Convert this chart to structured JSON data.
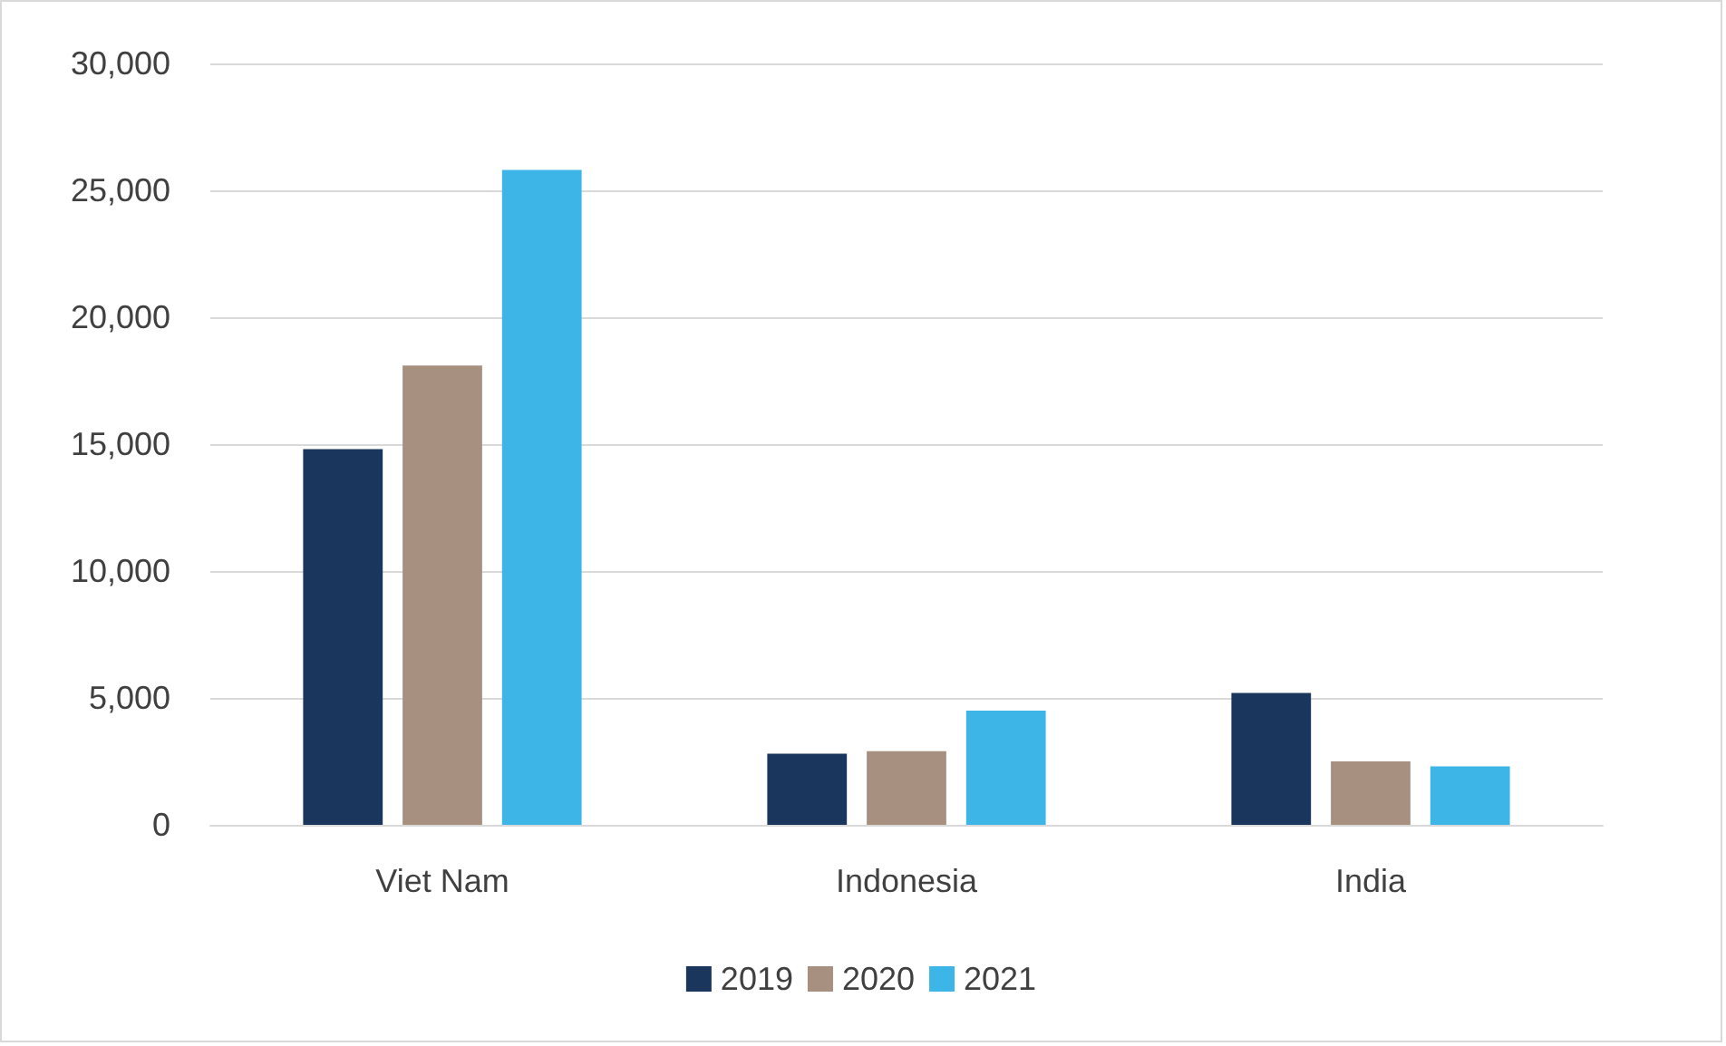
{
  "chart_data": {
    "type": "bar",
    "categories": [
      "Viet Nam",
      "Indonesia",
      "India"
    ],
    "series": [
      {
        "name": "2019",
        "color": "#1b365d",
        "values": [
          14800,
          2800,
          5200
        ]
      },
      {
        "name": "2020",
        "color": "#a89080",
        "values": [
          18100,
          2900,
          2500
        ]
      },
      {
        "name": "2021",
        "color": "#3db5e6",
        "values": [
          25800,
          4500,
          2300
        ]
      }
    ],
    "ylim": [
      0,
      30000
    ],
    "yticks": [
      {
        "value": 0,
        "label": "0"
      },
      {
        "value": 5000,
        "label": "5,000"
      },
      {
        "value": 10000,
        "label": "10,000"
      },
      {
        "value": 15000,
        "label": "15,000"
      },
      {
        "value": 20000,
        "label": "20,000"
      },
      {
        "value": 25000,
        "label": "25,000"
      },
      {
        "value": 30000,
        "label": "30,000"
      }
    ],
    "grid": "y",
    "legend": "bottom"
  }
}
